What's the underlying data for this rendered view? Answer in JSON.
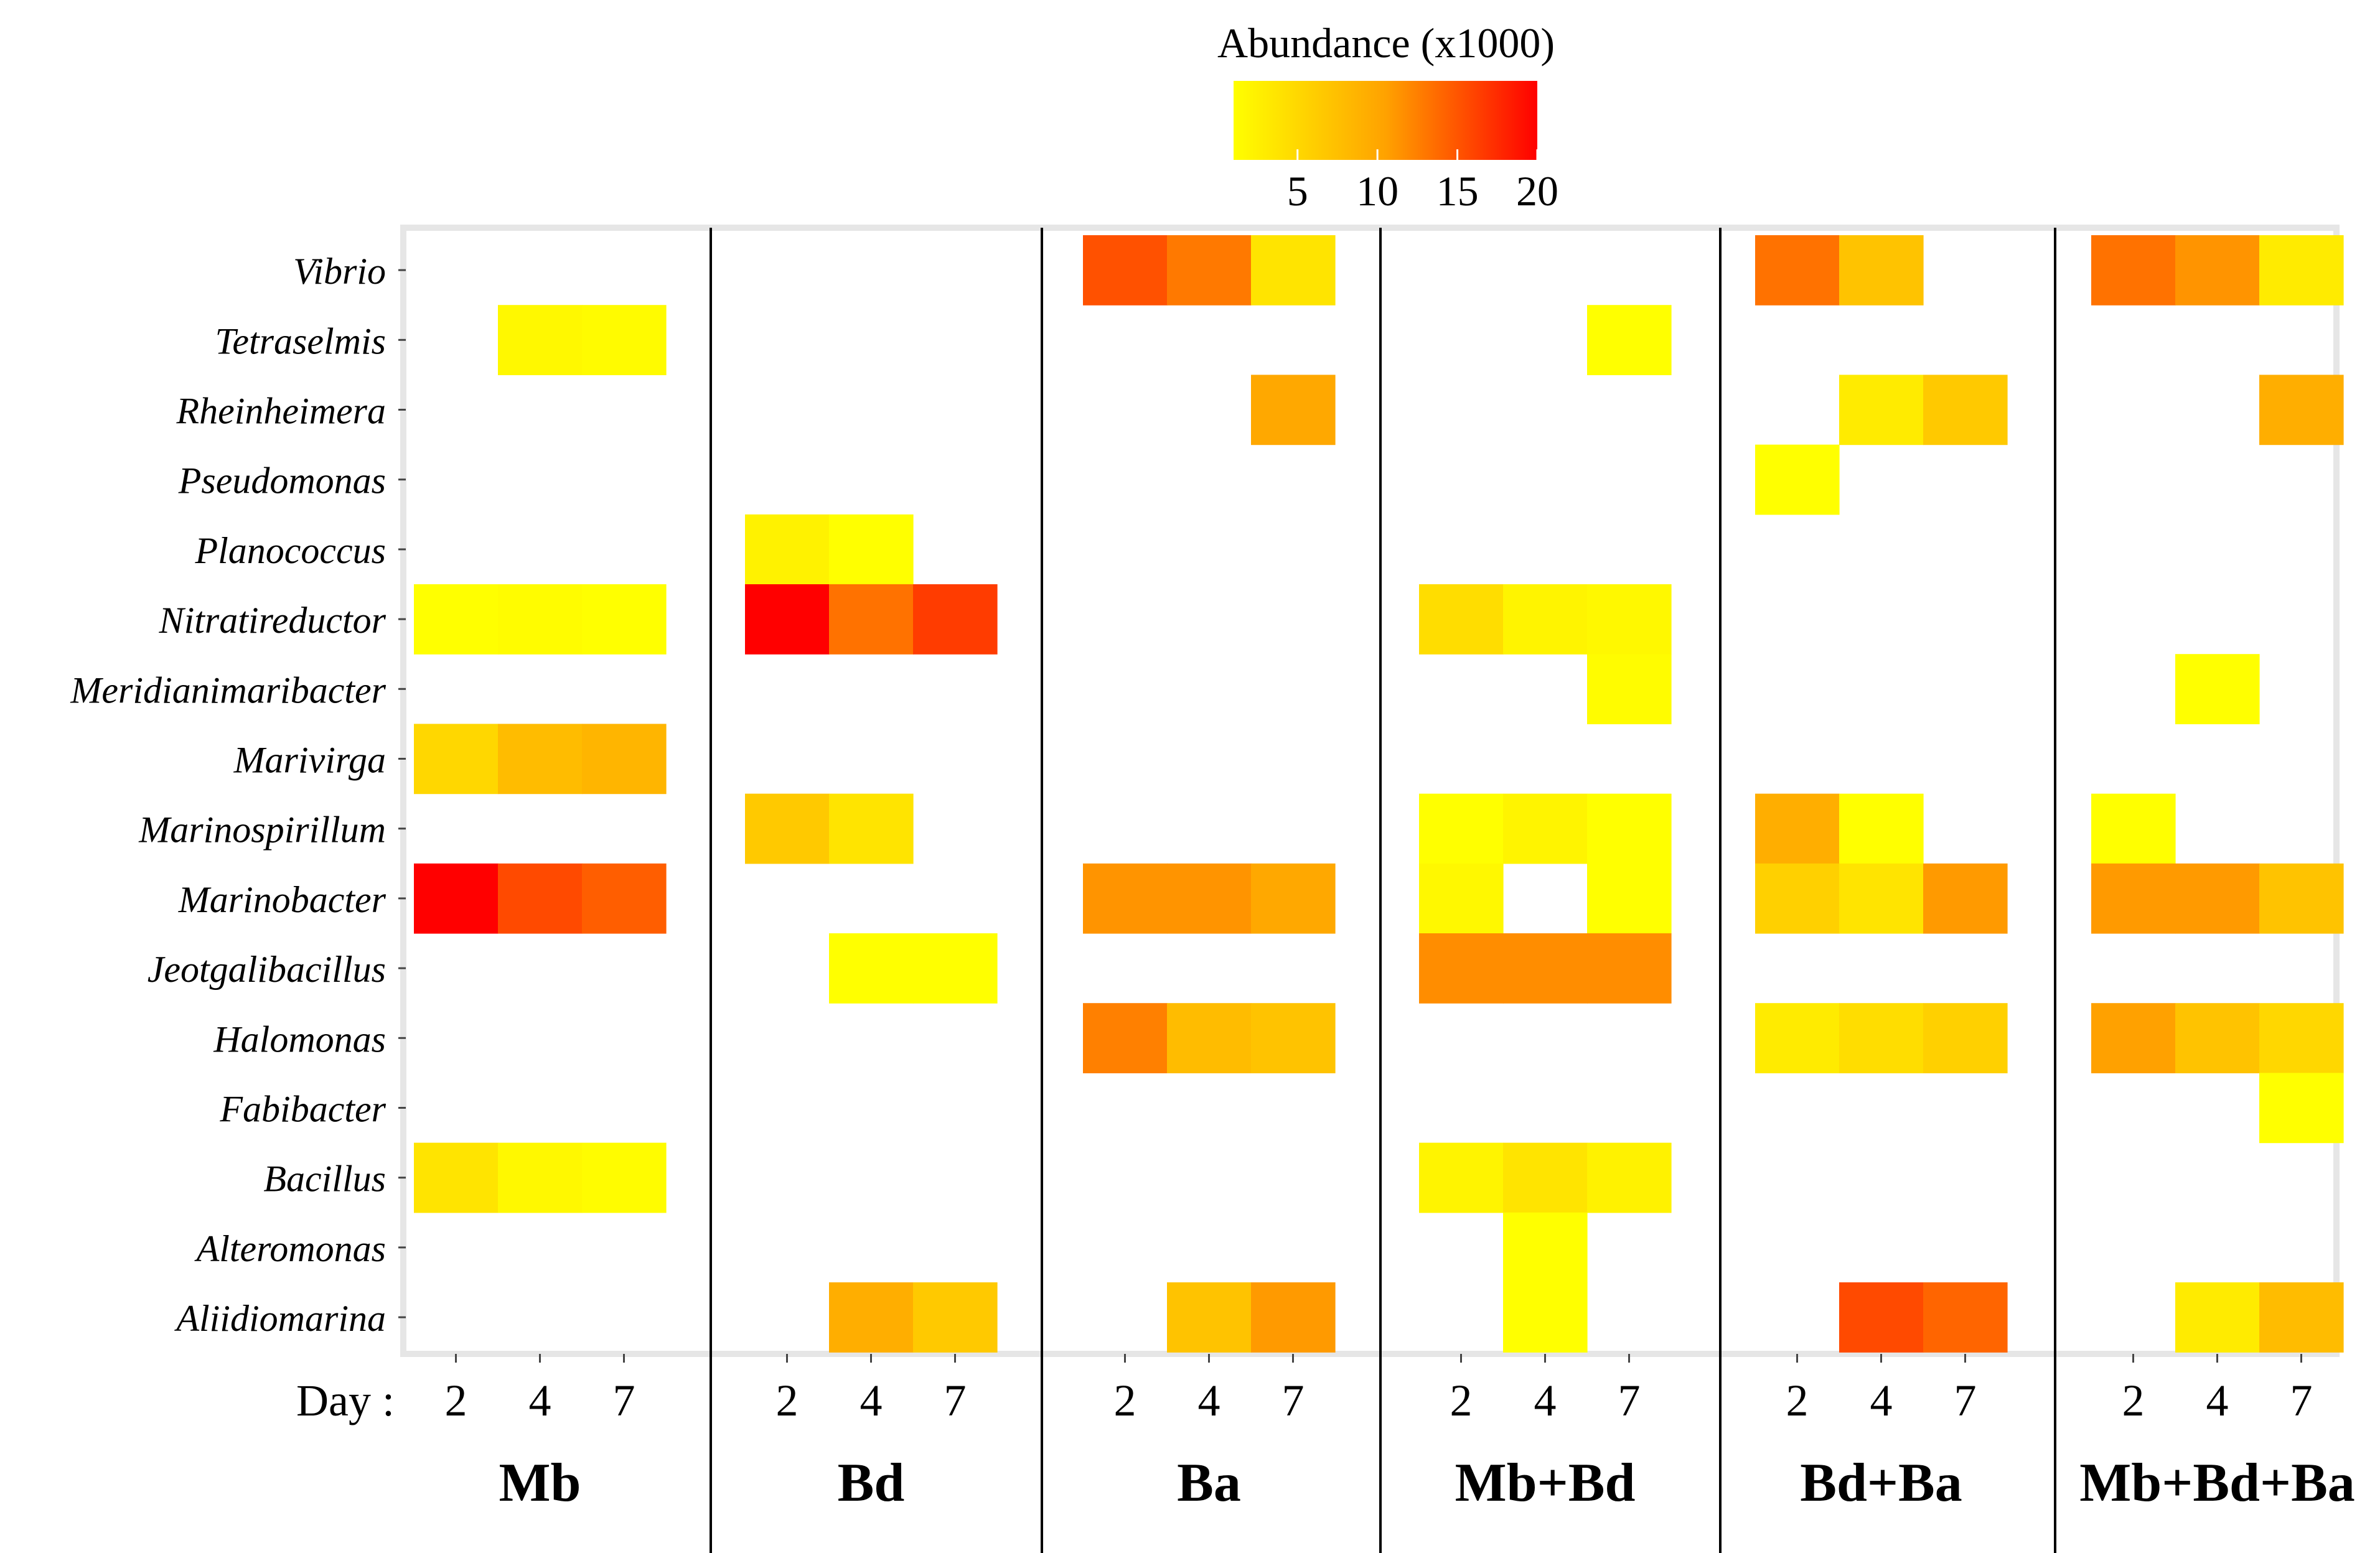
{
  "chart_data": {
    "type": "heatmap",
    "legend": {
      "title": "Abundance (x1000)",
      "ticks": [
        5,
        10,
        15,
        20
      ],
      "range": [
        1,
        20
      ],
      "colors": [
        "#ffff00",
        "#ff0000"
      ],
      "position": "top"
    },
    "x_prefix": "Day :",
    "days": [
      "2",
      "4",
      "7"
    ],
    "groups": [
      "Mb",
      "Bd",
      "Ba",
      "Mb+Bd",
      "Bd+Ba",
      "Mb+Bd+Ba"
    ],
    "genera": [
      "Vibrio",
      "Tetraselmis",
      "Rheinheimera",
      "Pseudomonas",
      "Planococcus",
      "Nitratireductor",
      "Meridianimaribacter",
      "Marivirga",
      "Marinospirillum",
      "Marinobacter",
      "Jeotgalibacillus",
      "Halomonas",
      "Fabibacter",
      "Bacillus",
      "Alteromonas",
      "Aliidiomarina"
    ],
    "values": {
      "Mb": [
        [
          null,
          null,
          null
        ],
        [
          null,
          1.5,
          1.3
        ],
        [
          null,
          null,
          null
        ],
        [
          null,
          null,
          null
        ],
        [
          null,
          null,
          null
        ],
        [
          1.0,
          1.2,
          1.0
        ],
        [
          null,
          null,
          null
        ],
        [
          4.0,
          6.0,
          6.5
        ],
        [
          null,
          null,
          null
        ],
        [
          20.0,
          14.5,
          13.0
        ],
        [
          null,
          null,
          null
        ],
        [
          null,
          null,
          null
        ],
        [
          null,
          null,
          null
        ],
        [
          3.0,
          1.5,
          1.2
        ],
        [
          null,
          null,
          null
        ],
        [
          null,
          null,
          null
        ]
      ],
      "Bd": [
        [
          null,
          null,
          null
        ],
        [
          null,
          null,
          null
        ],
        [
          null,
          null,
          null
        ],
        [
          null,
          null,
          null
        ],
        [
          2.0,
          0.5,
          null
        ],
        [
          20.0,
          11.5,
          15.5
        ],
        [
          null,
          null,
          null
        ],
        [
          null,
          null,
          null
        ],
        [
          5.0,
          3.0,
          null
        ],
        [
          null,
          null,
          null
        ],
        [
          null,
          0.8,
          0.8
        ],
        [
          null,
          null,
          null
        ],
        [
          null,
          null,
          null
        ],
        [
          null,
          null,
          null
        ],
        [
          null,
          null,
          null
        ],
        [
          null,
          7.0,
          5.0
        ]
      ],
      "Ba": [
        [
          14.0,
          11.0,
          3.0
        ],
        [
          null,
          null,
          null
        ],
        [
          null,
          null,
          7.5
        ],
        [
          null,
          null,
          null
        ],
        [
          null,
          null,
          null
        ],
        [
          null,
          null,
          null
        ],
        [
          null,
          null,
          null
        ],
        [
          null,
          null,
          null
        ],
        [
          null,
          null,
          null
        ],
        [
          9.0,
          9.0,
          7.5
        ],
        [
          null,
          null,
          null
        ],
        [
          10.5,
          6.0,
          5.5
        ],
        [
          null,
          null,
          null
        ],
        [
          null,
          null,
          null
        ],
        [
          null,
          null,
          null
        ],
        [
          null,
          5.5,
          8.5
        ]
      ],
      "Mb+Bd": [
        [
          null,
          null,
          null
        ],
        [
          null,
          null,
          1.0
        ],
        [
          null,
          null,
          null
        ],
        [
          null,
          null,
          null
        ],
        [
          null,
          null,
          null
        ],
        [
          3.5,
          1.8,
          1.5
        ],
        [
          null,
          null,
          1.2
        ],
        [
          null,
          null,
          null
        ],
        [
          1.0,
          1.8,
          1.0
        ],
        [
          1.5,
          null,
          1.0
        ],
        [
          9.5,
          9.5,
          9.5
        ],
        [
          null,
          null,
          null
        ],
        [
          null,
          null,
          null
        ],
        [
          1.8,
          3.0,
          2.0
        ],
        [
          null,
          1.0,
          null
        ],
        [
          null,
          1.0,
          null
        ]
      ],
      "Bd+Ba": [
        [
          11.5,
          5.5,
          null
        ],
        [
          null,
          null,
          null
        ],
        [
          null,
          2.5,
          5.0
        ],
        [
          1.0,
          null,
          null
        ],
        [
          null,
          null,
          null
        ],
        [
          null,
          null,
          null
        ],
        [
          null,
          null,
          null
        ],
        [
          null,
          null,
          null
        ],
        [
          7.0,
          0.5,
          null
        ],
        [
          4.5,
          3.0,
          8.5
        ],
        [
          null,
          null,
          null
        ],
        [
          2.5,
          3.5,
          4.5
        ],
        [
          null,
          null,
          null
        ],
        [
          null,
          null,
          null
        ],
        [
          null,
          null,
          null
        ],
        [
          null,
          14.5,
          12.5
        ]
      ],
      "Mb+Bd+Ba": [
        [
          11.5,
          9.0,
          2.5
        ],
        [
          null,
          null,
          null
        ],
        [
          null,
          null,
          7.0
        ],
        [
          null,
          null,
          null
        ],
        [
          null,
          null,
          null
        ],
        [
          null,
          null,
          null
        ],
        [
          null,
          1.0,
          null
        ],
        [
          null,
          null,
          null
        ],
        [
          1.0,
          null,
          null
        ],
        [
          8.5,
          8.5,
          5.5
        ],
        [
          null,
          null,
          null
        ],
        [
          8.0,
          5.5,
          4.0
        ],
        [
          null,
          null,
          1.0
        ],
        [
          null,
          null,
          null
        ],
        [
          null,
          null,
          null
        ],
        [
          null,
          2.5,
          6.0
        ]
      ]
    }
  }
}
